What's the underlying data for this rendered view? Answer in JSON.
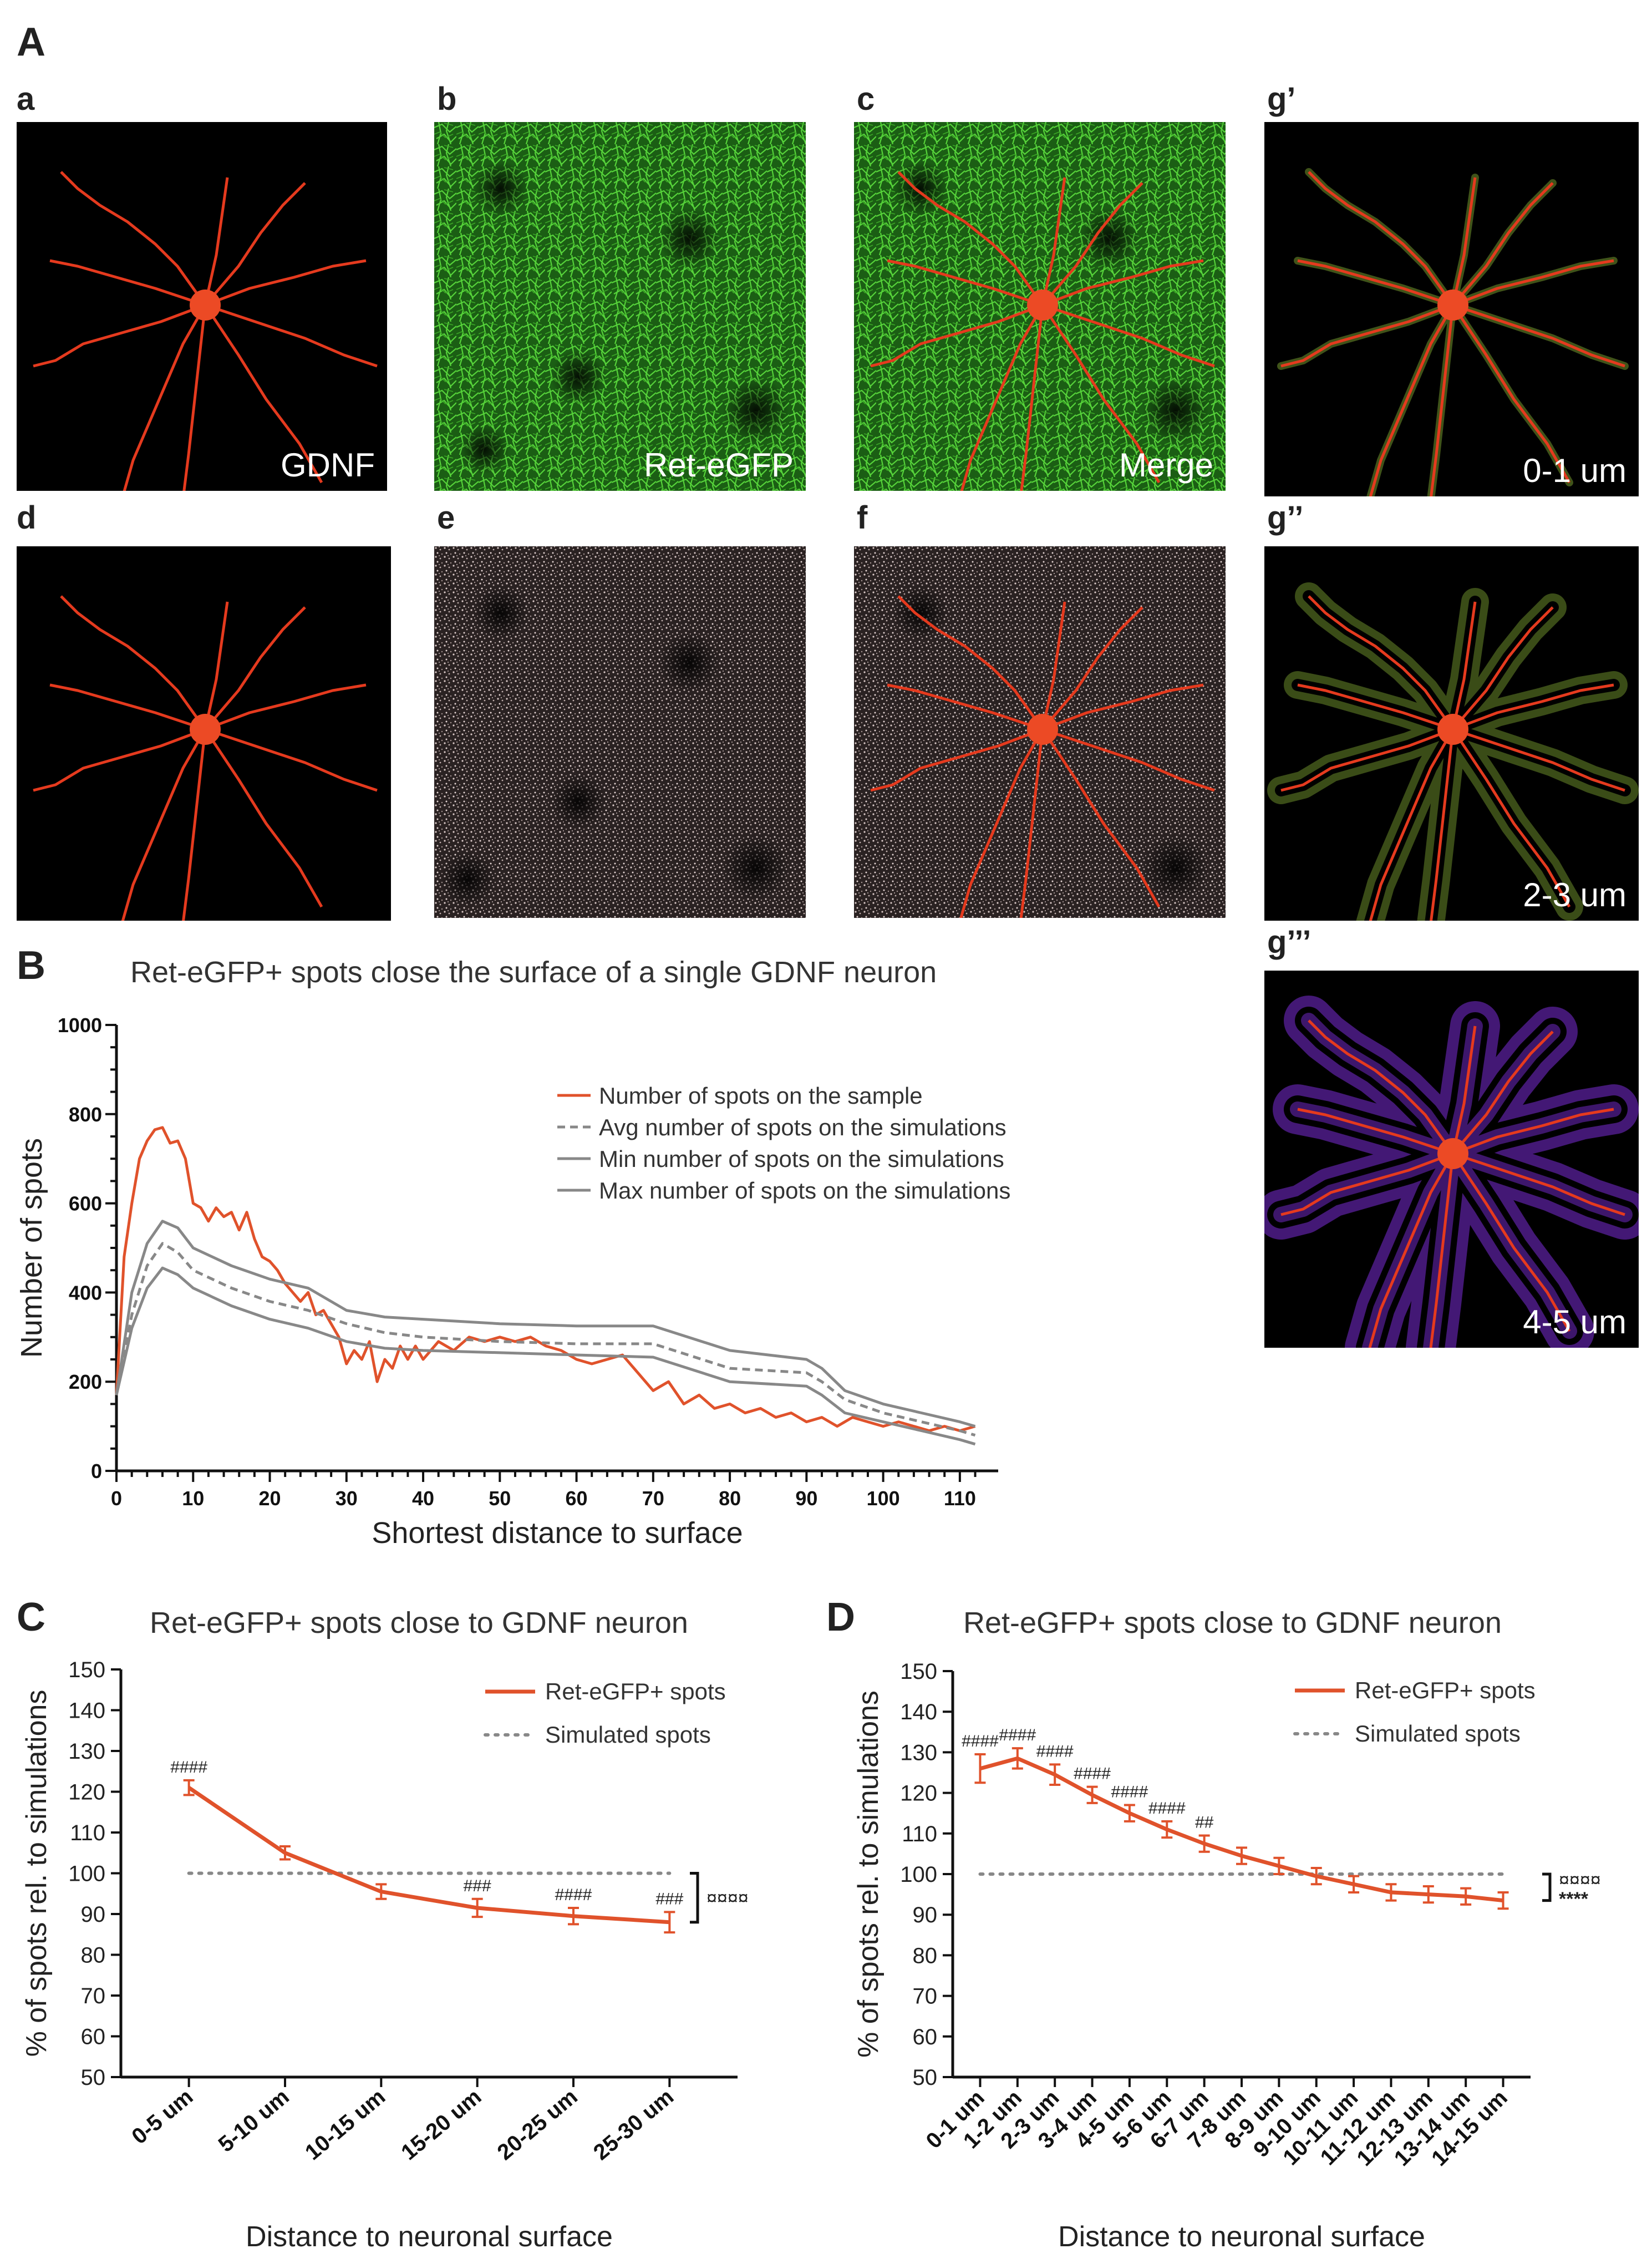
{
  "panel_labels": {
    "A": "A",
    "a": "a",
    "b": "b",
    "c": "c",
    "d": "d",
    "e": "e",
    "f": "f",
    "g1": "g’",
    "g2": "g’’",
    "g3": "g’’’",
    "B": "B",
    "C": "C",
    "D": "D"
  },
  "image_labels": {
    "a": "GDNF",
    "b": "Ret-eGFP",
    "c": "Merge",
    "g1": "0-1 um",
    "g2": "2-3 um",
    "g3": "4-5 um"
  },
  "colors": {
    "sample": "#e0522b",
    "simulation": "#888888",
    "neuron": "#e8321c",
    "ret": "#3fa82a",
    "spots": "#c9b8b6",
    "halo": "#7a2bd6"
  },
  "chart_data": [
    {
      "id": "B",
      "type": "line",
      "title": "Ret-eGFP+ spots close the surface of a single GDNF neuron",
      "xlabel": "Shortest distance to surface",
      "ylabel": "Number of spots",
      "xlim": [
        0,
        115
      ],
      "ylim": [
        0,
        1000
      ],
      "x_ticks": [
        0,
        10,
        20,
        30,
        40,
        50,
        60,
        70,
        80,
        90,
        100,
        110
      ],
      "y_ticks": [
        0,
        200,
        400,
        600,
        800,
        1000
      ],
      "legend_position": "right",
      "series": [
        {
          "name": "Number of spots on the sample",
          "style": "solid-orange",
          "x": [
            0,
            1,
            2,
            3,
            4,
            5,
            6,
            7,
            8,
            9,
            10,
            11,
            12,
            13,
            14,
            15,
            16,
            17,
            18,
            19,
            20,
            21,
            22,
            23,
            24,
            25,
            26,
            27,
            28,
            29,
            30,
            31,
            32,
            33,
            34,
            35,
            36,
            37,
            38,
            39,
            40,
            42,
            44,
            46,
            48,
            50,
            52,
            54,
            56,
            58,
            60,
            62,
            64,
            66,
            68,
            70,
            72,
            74,
            76,
            78,
            80,
            82,
            84,
            86,
            88,
            90,
            92,
            94,
            96,
            98,
            100,
            102,
            104,
            106,
            108,
            110,
            112
          ],
          "y": [
            170,
            480,
            600,
            700,
            740,
            765,
            770,
            735,
            740,
            700,
            600,
            590,
            560,
            590,
            570,
            580,
            540,
            580,
            520,
            480,
            470,
            450,
            420,
            400,
            380,
            400,
            350,
            360,
            330,
            300,
            240,
            270,
            250,
            290,
            200,
            250,
            230,
            280,
            250,
            280,
            250,
            290,
            270,
            300,
            290,
            300,
            290,
            300,
            280,
            270,
            250,
            240,
            250,
            260,
            220,
            180,
            200,
            150,
            170,
            140,
            150,
            130,
            140,
            120,
            130,
            110,
            120,
            100,
            120,
            110,
            100,
            110,
            100,
            90,
            100,
            90,
            100
          ]
        },
        {
          "name": "Avg number of spots on the simulations",
          "style": "dashed-grey",
          "x": [
            0,
            2,
            4,
            6,
            8,
            10,
            15,
            20,
            25,
            30,
            35,
            40,
            50,
            60,
            70,
            80,
            90,
            92,
            95,
            100,
            105,
            110,
            112
          ],
          "y": [
            170,
            350,
            460,
            510,
            490,
            450,
            410,
            380,
            360,
            330,
            310,
            300,
            290,
            285,
            285,
            230,
            220,
            200,
            160,
            130,
            110,
            90,
            80
          ]
        },
        {
          "name": "Min number of spots on the simulations",
          "style": "solid-grey",
          "x": [
            0,
            2,
            4,
            6,
            8,
            10,
            15,
            20,
            25,
            30,
            35,
            40,
            50,
            60,
            70,
            80,
            90,
            92,
            95,
            100,
            105,
            110,
            112
          ],
          "y": [
            170,
            320,
            410,
            455,
            440,
            410,
            370,
            340,
            320,
            290,
            275,
            270,
            265,
            260,
            255,
            200,
            190,
            170,
            130,
            110,
            90,
            70,
            60
          ]
        },
        {
          "name": "Max number of spots on the simulations",
          "style": "solid-grey",
          "x": [
            0,
            2,
            4,
            6,
            8,
            10,
            15,
            20,
            25,
            30,
            35,
            40,
            50,
            60,
            70,
            80,
            90,
            92,
            95,
            100,
            105,
            110,
            112
          ],
          "y": [
            170,
            400,
            510,
            560,
            545,
            500,
            460,
            430,
            410,
            360,
            345,
            340,
            330,
            325,
            325,
            270,
            250,
            230,
            180,
            150,
            130,
            110,
            100
          ]
        }
      ]
    },
    {
      "id": "C",
      "type": "line",
      "title": "Ret-eGFP+ spots close to GDNF neuron",
      "xlabel": "Distance to neuronal surface",
      "ylabel": "% of spots rel. to simulations",
      "ylim": [
        50,
        150
      ],
      "y_ticks": [
        50,
        60,
        70,
        80,
        90,
        100,
        110,
        120,
        130,
        140,
        150
      ],
      "categories": [
        "0-5 um",
        "5-10 um",
        "10-15 um",
        "15-20 um",
        "20-25 um",
        "25-30 um"
      ],
      "legend_position": "top-right",
      "series": [
        {
          "name": "Ret-eGFP+ spots",
          "values": [
            121,
            105,
            95.5,
            91.5,
            89.5,
            88
          ],
          "errors": [
            1.8,
            1.6,
            1.8,
            2.2,
            2.0,
            2.5
          ]
        },
        {
          "name": "Simulated spots",
          "values": [
            100,
            100,
            100,
            100,
            100,
            100
          ]
        }
      ],
      "annotations": [
        "####",
        "",
        "",
        "###",
        "####",
        "###"
      ],
      "bracket_label": "¤¤¤¤"
    },
    {
      "id": "D",
      "type": "line",
      "title": "Ret-eGFP+ spots close to GDNF neuron",
      "xlabel": "Distance to neuronal surface",
      "ylabel": "% of spots rel. to simulations",
      "ylim": [
        50,
        150
      ],
      "y_ticks": [
        50,
        60,
        70,
        80,
        90,
        100,
        110,
        120,
        130,
        140,
        150
      ],
      "categories": [
        "0-1 um",
        "1-2 um",
        "2-3 um",
        "3-4 um",
        "4-5 um",
        "5-6 um",
        "6-7 um",
        "7-8 um",
        "8-9 um",
        "9-10 um",
        "10-11 um",
        "11-12 um",
        "12-13 um",
        "13-14 um",
        "14-15 um"
      ],
      "legend_position": "top-right",
      "series": [
        {
          "name": "Ret-eGFP+ spots",
          "values": [
            126,
            128.5,
            124.5,
            119.5,
            115,
            111,
            107.5,
            104.5,
            102,
            99.5,
            97.5,
            95.5,
            95,
            94.5,
            93.5
          ],
          "errors": [
            3.5,
            2.5,
            2.5,
            2,
            2,
            2,
            2,
            2,
            2,
            2,
            2,
            2,
            2,
            2,
            2
          ]
        },
        {
          "name": "Simulated spots",
          "values": [
            100,
            100,
            100,
            100,
            100,
            100,
            100,
            100,
            100,
            100,
            100,
            100,
            100,
            100,
            100
          ]
        }
      ],
      "annotations": [
        "####",
        "####",
        "####",
        "####",
        "####",
        "####",
        "##",
        "",
        "",
        "",
        "",
        "",
        "",
        "",
        ""
      ],
      "bracket_label": "¤¤¤¤",
      "bracket_label2": "****"
    }
  ]
}
